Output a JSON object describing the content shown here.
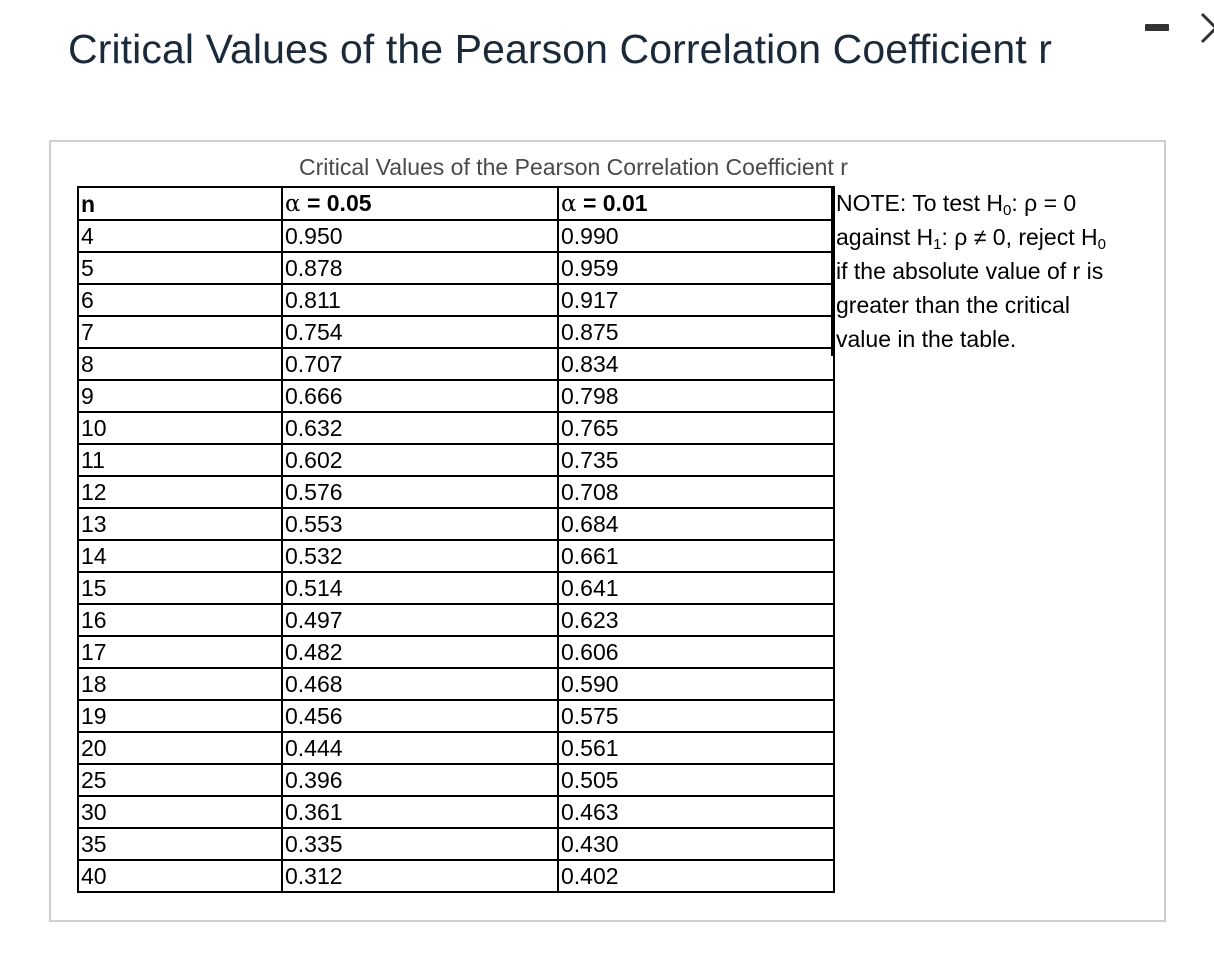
{
  "page": {
    "title": "Critical Values of the Pearson Correlation Coefficient r"
  },
  "window_controls": {
    "minimize_icon": "minimize-icon",
    "close_icon": "close-icon"
  },
  "table": {
    "caption": "Critical Values of the Pearson Correlation Coefficient r",
    "headers": {
      "n": "n",
      "alpha_symbol": "α",
      "alpha1": "= 0.05",
      "alpha2": "= 0.01"
    },
    "rows": [
      {
        "n": "4",
        "a05": "0.950",
        "a01": "0.990"
      },
      {
        "n": "5",
        "a05": "0.878",
        "a01": "0.959"
      },
      {
        "n": "6",
        "a05": "0.811",
        "a01": "0.917"
      },
      {
        "n": "7",
        "a05": "0.754",
        "a01": "0.875"
      },
      {
        "n": "8",
        "a05": "0.707",
        "a01": "0.834"
      },
      {
        "n": "9",
        "a05": "0.666",
        "a01": "0.798"
      },
      {
        "n": "10",
        "a05": "0.632",
        "a01": "0.765"
      },
      {
        "n": "11",
        "a05": "0.602",
        "a01": "0.735"
      },
      {
        "n": "12",
        "a05": "0.576",
        "a01": "0.708"
      },
      {
        "n": "13",
        "a05": "0.553",
        "a01": "0.684"
      },
      {
        "n": "14",
        "a05": "0.532",
        "a01": "0.661"
      },
      {
        "n": "15",
        "a05": "0.514",
        "a01": "0.641"
      },
      {
        "n": "16",
        "a05": "0.497",
        "a01": "0.623"
      },
      {
        "n": "17",
        "a05": "0.482",
        "a01": "0.606"
      },
      {
        "n": "18",
        "a05": "0.468",
        "a01": "0.590"
      },
      {
        "n": "19",
        "a05": "0.456",
        "a01": "0.575"
      },
      {
        "n": "20",
        "a05": "0.444",
        "a01": "0.561"
      },
      {
        "n": "25",
        "a05": "0.396",
        "a01": "0.505"
      },
      {
        "n": "30",
        "a05": "0.361",
        "a01": "0.463"
      },
      {
        "n": "35",
        "a05": "0.335",
        "a01": "0.430"
      },
      {
        "n": "40",
        "a05": "0.312",
        "a01": "0.402"
      }
    ]
  },
  "note": {
    "line1_prefix": "NOTE: To test H",
    "h0_sub": "0",
    "line1_suffix": ": ρ = 0",
    "line2_prefix": "against H",
    "h1_sub": "1",
    "line2_mid": ": ρ ≠ 0, reject H",
    "h0_sub_2": "0",
    "line3": "if the absolute value of r is",
    "line4": "greater than the critical",
    "line5": "value in the table."
  }
}
